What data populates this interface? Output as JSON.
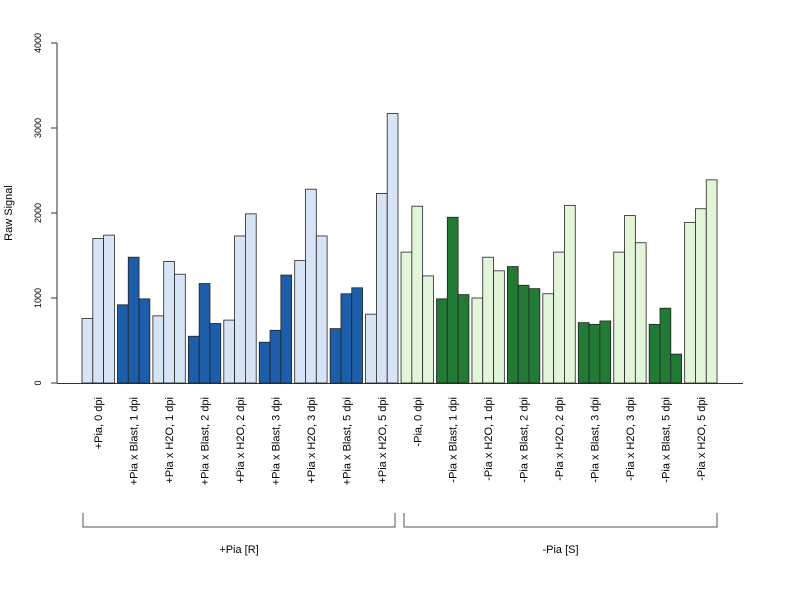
{
  "chart_data": {
    "type": "bar",
    "ylabel": "Raw Signal",
    "xlabel": "",
    "ylim": [
      0,
      4000
    ],
    "yticks": [
      0,
      1000,
      2000,
      3000,
      4000
    ],
    "categories": [
      "+Pia, 0 dpi",
      "+Pia x Blast, 1 dpi",
      "+Pia x H2O, 1 dpi",
      "+Pia x Blast, 2 dpi",
      "+Pia x H2O, 2 dpi",
      "+Pia x Blast, 3 dpi",
      "+Pia x H2O, 3 dpi",
      "+Pia x Blast, 5 dpi",
      "+Pia x H2O, 5 dpi",
      "-Pia, 0 dpi",
      "-Pia x Blast, 1 dpi",
      "-Pia x H2O, 1 dpi",
      "-Pia x Blast, 2 dpi",
      "-Pia x H2O, 2 dpi",
      "-Pia x Blast, 3 dpi",
      "-Pia x H2O, 3 dpi",
      "-Pia x Blast, 5 dpi",
      "-Pia x H2O, 5 dpi"
    ],
    "replicate_values": [
      [
        760,
        1700,
        1740
      ],
      [
        920,
        1480,
        990
      ],
      [
        790,
        1430,
        1280
      ],
      [
        550,
        1170,
        700
      ],
      [
        740,
        1730,
        1990
      ],
      [
        480,
        620,
        1270
      ],
      [
        1440,
        2280,
        1730
      ],
      [
        640,
        1050,
        1120
      ],
      [
        810,
        2230,
        3170
      ],
      [
        1540,
        2080,
        1260
      ],
      [
        990,
        1950,
        1040
      ],
      [
        1000,
        1480,
        1320
      ],
      [
        1370,
        1150,
        1110
      ],
      [
        1050,
        1540,
        2090
      ],
      [
        710,
        690,
        730
      ],
      [
        1540,
        1970,
        1650
      ],
      [
        690,
        880,
        340
      ],
      [
        1890,
        2050,
        2390
      ]
    ],
    "bar_fill": [
      "#d6e4f5",
      "#1c5ea9",
      "#d6e4f5",
      "#1c5ea9",
      "#d6e4f5",
      "#1c5ea9",
      "#d6e4f5",
      "#1c5ea9",
      "#d6e4f5",
      "#e3f5d9",
      "#227b35",
      "#e3f5d9",
      "#227b35",
      "#e3f5d9",
      "#227b35",
      "#e3f5d9",
      "#227b35",
      "#e3f5d9"
    ],
    "groups": [
      {
        "label": "+Pia [R]",
        "from": 0,
        "to": 8
      },
      {
        "label": "-Pia [S]",
        "from": 9,
        "to": 17
      }
    ],
    "grid": false,
    "legend": "none"
  }
}
